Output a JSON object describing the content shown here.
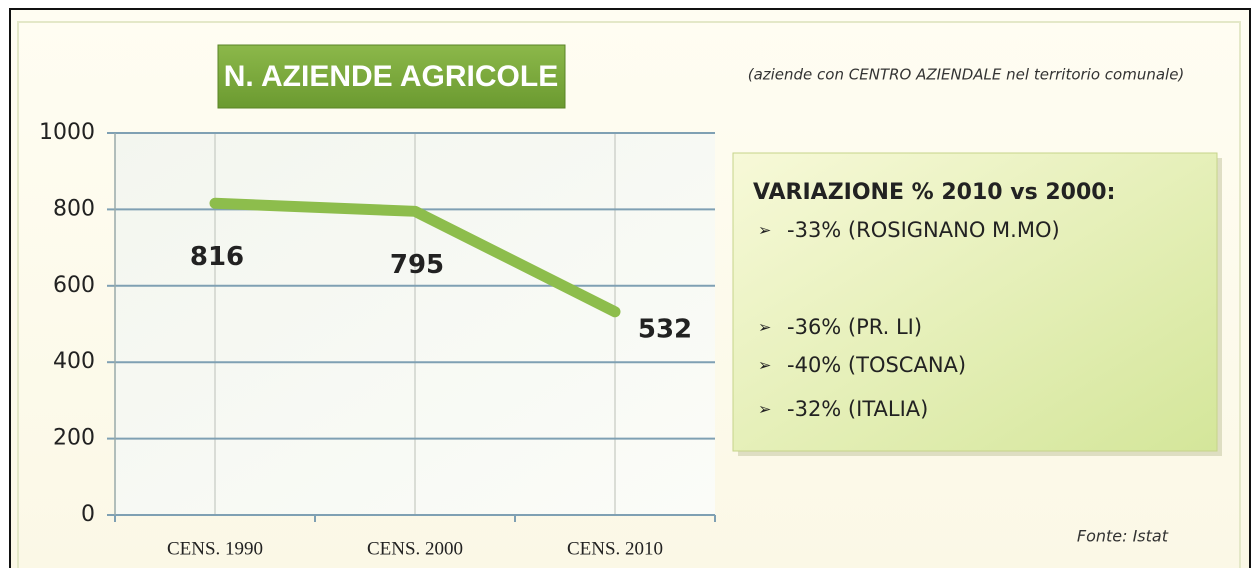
{
  "chart_data": {
    "type": "line",
    "title": "N. AZIENDE AGRICOLE",
    "subtitle": "(aziende con CENTRO AZIENDALE nel territorio comunale)",
    "categories": [
      "CENS. 1990",
      "CENS. 2000",
      "CENS. 2010"
    ],
    "values": [
      816,
      795,
      532
    ],
    "color": "#8dbd4c",
    "ylim": [
      0,
      1000
    ],
    "yticks": [
      0,
      200,
      400,
      600,
      800,
      1000
    ],
    "grid": true,
    "annotation_box": {
      "title": "VARIAZIONE % 2010 vs 2000:",
      "items": [
        "-33% (ROSIGNANO M.MO)",
        "-36% (PR.  LI)",
        "-40% (TOSCANA)",
        "-32% (ITALIA)"
      ]
    },
    "source": "Fonte: Istat"
  }
}
